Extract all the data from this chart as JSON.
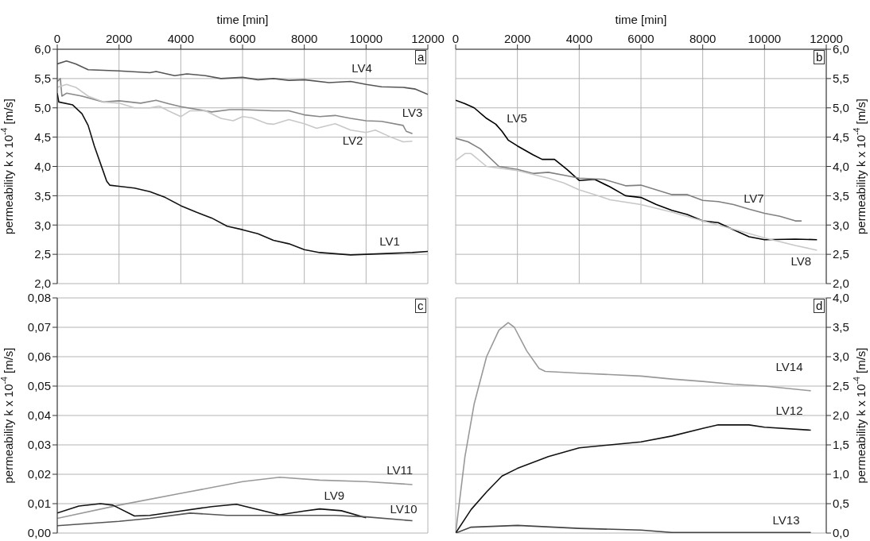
{
  "chart_data": [
    {
      "type": "line",
      "xlabel": "time [min]",
      "ylabel": "permeability k x 10$^{-4}$ [m/s]",
      "annotations": [
        "a"
      ],
      "grid": true,
      "xlim": [
        0,
        12000
      ],
      "xticks": [
        0,
        2000,
        4000,
        6000,
        8000,
        10000,
        12000
      ],
      "ylim": [
        2,
        6
      ],
      "yticks": [
        {
          "value": 2,
          "label": "2,0"
        },
        {
          "value": 2.5,
          "label": "2,5"
        },
        {
          "value": 3,
          "label": "3,0"
        },
        {
          "value": 3.5,
          "label": "3,5"
        },
        {
          "value": 4,
          "label": "4,0"
        },
        {
          "value": 4.5,
          "label": "4,5"
        },
        {
          "value": 5,
          "label": "5,0"
        },
        {
          "value": 5.5,
          "label": "5,5"
        },
        {
          "value": 6,
          "label": "6,0"
        }
      ],
      "series": [
        {
          "name": "LV4",
          "color": "#555555",
          "x": [
            0,
            300,
            600,
            1000,
            2000,
            3000,
            3200,
            3800,
            4200,
            4800,
            5300,
            6000,
            6500,
            7000,
            7500,
            8000,
            8800,
            9500,
            10000,
            10500,
            11200,
            11600,
            12000
          ],
          "values": [
            5.75,
            5.8,
            5.75,
            5.65,
            5.63,
            5.6,
            5.62,
            5.55,
            5.58,
            5.55,
            5.5,
            5.52,
            5.48,
            5.5,
            5.47,
            5.48,
            5.43,
            5.45,
            5.4,
            5.36,
            5.35,
            5.32,
            5.23
          ]
        },
        {
          "name": "LV3",
          "color": "#888888",
          "x": [
            0,
            100,
            150,
            300,
            800,
            1500,
            2000,
            2700,
            3200,
            3600,
            4000,
            5000,
            5600,
            6000,
            7000,
            7500,
            8000,
            8500,
            9000,
            9500,
            10000,
            10500,
            11200,
            11300,
            11500
          ],
          "values": [
            5.45,
            5.5,
            5.2,
            5.25,
            5.2,
            5.1,
            5.12,
            5.08,
            5.13,
            5.07,
            5.02,
            4.93,
            4.97,
            4.97,
            4.95,
            4.95,
            4.88,
            4.85,
            4.87,
            4.82,
            4.78,
            4.77,
            4.7,
            4.6,
            4.56
          ]
        },
        {
          "name": "LV2",
          "color": "#c8c8c8",
          "x": [
            0,
            300,
            600,
            1000,
            1500,
            2000,
            2500,
            3000,
            3300,
            3600,
            4000,
            4300,
            4800,
            5300,
            5700,
            6000,
            6300,
            6800,
            7000,
            7500,
            8000,
            8400,
            9000,
            9500,
            10000,
            10300,
            10800,
            11200,
            11500
          ],
          "values": [
            5.35,
            5.4,
            5.35,
            5.2,
            5.1,
            5.08,
            5.0,
            5.0,
            5.03,
            4.95,
            4.85,
            4.95,
            4.95,
            4.82,
            4.78,
            4.85,
            4.83,
            4.73,
            4.72,
            4.8,
            4.73,
            4.65,
            4.73,
            4.62,
            4.58,
            4.62,
            4.5,
            4.42,
            4.43
          ]
        },
        {
          "name": "LV1",
          "color": "#111111",
          "x": [
            0,
            50,
            500,
            800,
            1000,
            1200,
            1500,
            1600,
            1700,
            2000,
            2500,
            3000,
            3500,
            4000,
            4500,
            5000,
            5500,
            6000,
            6500,
            7000,
            7500,
            8000,
            8500,
            9000,
            9500,
            10000,
            11000,
            11500,
            12000
          ],
          "values": [
            5.25,
            5.1,
            5.05,
            4.9,
            4.7,
            4.35,
            3.9,
            3.75,
            3.68,
            3.66,
            3.63,
            3.57,
            3.47,
            3.33,
            3.22,
            3.12,
            2.98,
            2.92,
            2.85,
            2.74,
            2.68,
            2.58,
            2.53,
            2.51,
            2.49,
            2.5,
            2.52,
            2.53,
            2.55
          ]
        }
      ]
    },
    {
      "type": "line",
      "xlabel": "time [min]",
      "ylabel": "permeability k x 10$^{-4}$ [m/s]",
      "annotations": [
        "b"
      ],
      "grid": true,
      "xlim": [
        0,
        12000
      ],
      "xticks": [
        0,
        2000,
        4000,
        6000,
        8000,
        10000,
        12000
      ],
      "ylim": [
        2,
        6
      ],
      "yticks": [
        {
          "value": 2,
          "label": "2,0"
        },
        {
          "value": 2.5,
          "label": "2,5"
        },
        {
          "value": 3,
          "label": "3,0"
        },
        {
          "value": 3.5,
          "label": "3,5"
        },
        {
          "value": 4,
          "label": "4,0"
        },
        {
          "value": 4.5,
          "label": "4,5"
        },
        {
          "value": 5,
          "label": "5,0"
        },
        {
          "value": 5.5,
          "label": "5,5"
        },
        {
          "value": 6,
          "label": "6,0"
        }
      ],
      "series": [
        {
          "name": "LV5",
          "color": "#000000",
          "x": [
            0,
            300,
            600,
            1000,
            1300,
            1500,
            1700,
            2000,
            2500,
            2800,
            3200,
            3600,
            4000,
            4500,
            5000,
            5500,
            6000,
            6500,
            7000,
            7500,
            8000,
            8500,
            9000,
            9500,
            10000,
            11000,
            11700
          ],
          "values": [
            5.13,
            5.07,
            5.0,
            4.82,
            4.72,
            4.6,
            4.45,
            4.35,
            4.2,
            4.12,
            4.12,
            3.95,
            3.76,
            3.78,
            3.65,
            3.5,
            3.47,
            3.35,
            3.25,
            3.18,
            3.07,
            3.04,
            2.92,
            2.8,
            2.75,
            2.76,
            2.75
          ]
        },
        {
          "name": "LV7",
          "color": "#808080",
          "x": [
            0,
            400,
            800,
            1400,
            2000,
            2500,
            3000,
            3500,
            4000,
            4800,
            5500,
            6000,
            6500,
            7000,
            7500,
            8000,
            8500,
            9000,
            9500,
            10000,
            10500,
            11000,
            11200
          ],
          "values": [
            4.48,
            4.42,
            4.3,
            4.0,
            3.95,
            3.88,
            3.9,
            3.85,
            3.8,
            3.78,
            3.67,
            3.68,
            3.6,
            3.52,
            3.52,
            3.42,
            3.4,
            3.35,
            3.27,
            3.2,
            3.15,
            3.07,
            3.07
          ]
        },
        {
          "name": "LV8",
          "color": "#c8c8c8",
          "x": [
            0,
            300,
            500,
            1000,
            2000,
            3000,
            3500,
            4000,
            4500,
            5000,
            6000,
            7000,
            8000,
            9000,
            10000,
            11000,
            11700
          ],
          "values": [
            4.1,
            4.22,
            4.22,
            4.0,
            3.93,
            3.8,
            3.72,
            3.6,
            3.52,
            3.43,
            3.35,
            3.22,
            3.07,
            2.93,
            2.78,
            2.65,
            2.57
          ]
        }
      ]
    },
    {
      "type": "line",
      "ylabel": "permeability k x 10$^{-4}$ [m/s]",
      "annotations": [
        "c"
      ],
      "grid": true,
      "tick_labels": "y",
      "xlim": [
        0,
        12000
      ],
      "xticks": [
        0,
        2000,
        4000,
        6000,
        8000,
        10000,
        12000
      ],
      "ylim": [
        0,
        0.08
      ],
      "yticks": [
        {
          "value": 0,
          "label": "0,00"
        },
        {
          "value": 0.01,
          "label": "0,01"
        },
        {
          "value": 0.02,
          "label": "0,02"
        },
        {
          "value": 0.03,
          "label": "0,03"
        },
        {
          "value": 0.04,
          "label": "0,04"
        },
        {
          "value": 0.05,
          "label": "0,05"
        },
        {
          "value": 0.06,
          "label": "0,06"
        },
        {
          "value": 0.07,
          "label": "0,07"
        },
        {
          "value": 0.08,
          "label": "0,08"
        }
      ],
      "series": [
        {
          "name": "LV11",
          "color": "#999999",
          "x": [
            0,
            2000,
            4000,
            6000,
            7200,
            8500,
            10000,
            11500
          ],
          "values": [
            0.005,
            0.0095,
            0.0135,
            0.0175,
            0.019,
            0.018,
            0.0175,
            0.0165
          ]
        },
        {
          "name": "LV9",
          "color": "#111111",
          "x": [
            0,
            700,
            1400,
            1800,
            2500,
            3000,
            4000,
            5000,
            5800,
            6300,
            7200,
            8000,
            8500,
            9200,
            10000
          ],
          "values": [
            0.0068,
            0.0092,
            0.01,
            0.0095,
            0.0058,
            0.006,
            0.0075,
            0.009,
            0.0098,
            0.0085,
            0.0062,
            0.0075,
            0.0082,
            0.0076,
            0.0052
          ]
        },
        {
          "name": "LV10",
          "color": "#555555",
          "x": [
            0,
            2000,
            3000,
            4300,
            5500,
            7000,
            9000,
            10000,
            11500
          ],
          "values": [
            0.0025,
            0.004,
            0.005,
            0.0068,
            0.006,
            0.006,
            0.006,
            0.0055,
            0.0042
          ]
        }
      ]
    },
    {
      "type": "line",
      "ylabel": "permeability k x 10$^{-4}$ [m/s]",
      "annotations": [
        "d"
      ],
      "grid": true,
      "tick_labels": "y",
      "xlim": [
        0,
        12000
      ],
      "xticks": [
        0,
        2000,
        4000,
        6000,
        8000,
        10000,
        12000
      ],
      "ylim": [
        0,
        4
      ],
      "yticks": [
        {
          "value": 0,
          "label": "0,0"
        },
        {
          "value": 0.5,
          "label": "0,5"
        },
        {
          "value": 1,
          "label": "1,0"
        },
        {
          "value": 1.5,
          "label": "1,5"
        },
        {
          "value": 2,
          "label": "2,0"
        },
        {
          "value": 2.5,
          "label": "2,5"
        },
        {
          "value": 3,
          "label": "3,0"
        },
        {
          "value": 3.5,
          "label": "3,5"
        },
        {
          "value": 4,
          "label": "4,0"
        }
      ],
      "series": [
        {
          "name": "LV14",
          "color": "#999999",
          "x": [
            0,
            300,
            600,
            1000,
            1400,
            1700,
            1900,
            2300,
            2700,
            2900,
            4000,
            6000,
            7000,
            8000,
            9000,
            10000,
            11500
          ],
          "values": [
            0,
            1.3,
            2.2,
            3.0,
            3.45,
            3.58,
            3.5,
            3.1,
            2.8,
            2.75,
            2.72,
            2.67,
            2.62,
            2.58,
            2.53,
            2.5,
            2.42
          ]
        },
        {
          "name": "LV12",
          "color": "#111111",
          "x": [
            0,
            500,
            1000,
            1500,
            2000,
            3000,
            4000,
            5000,
            6000,
            7000,
            8000,
            8500,
            9500,
            10000,
            11500
          ],
          "values": [
            0,
            0.4,
            0.7,
            0.97,
            1.1,
            1.3,
            1.45,
            1.5,
            1.55,
            1.65,
            1.78,
            1.84,
            1.84,
            1.8,
            1.75
          ]
        },
        {
          "name": "LV13",
          "color": "#444444",
          "x": [
            0,
            500,
            2000,
            4000,
            6000,
            7000,
            11500
          ],
          "values": [
            0,
            0.1,
            0.13,
            0.08,
            0.05,
            0.01,
            0.01
          ]
        }
      ]
    }
  ]
}
